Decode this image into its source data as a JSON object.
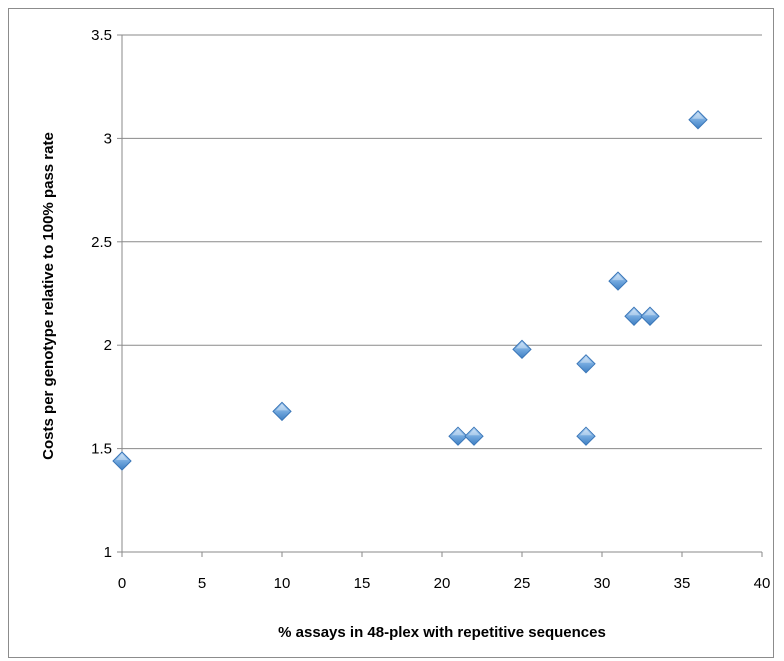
{
  "chart_data": {
    "type": "scatter",
    "title": "",
    "xlabel": "% assays in 48-plex with repetitive sequences",
    "ylabel": "Costs per genotype relative to 100% pass rate",
    "xlim": [
      0,
      40
    ],
    "ylim": [
      1,
      3.5
    ],
    "xticks": [
      "0",
      "5",
      "10",
      "15",
      "20",
      "25",
      "30",
      "35",
      "40"
    ],
    "yticks": [
      "1",
      "1.5",
      "2",
      "2.5",
      "3",
      "3.5"
    ],
    "grid": "horizontal",
    "marker": "diamond",
    "marker_color": "#5b9bd5",
    "series": [
      {
        "x": [
          0,
          10,
          21,
          22,
          25,
          29,
          29,
          31,
          32,
          33,
          36
        ],
        "y": [
          1.44,
          1.68,
          1.56,
          1.56,
          1.98,
          1.91,
          1.56,
          2.31,
          2.14,
          2.14,
          3.09
        ]
      }
    ]
  }
}
